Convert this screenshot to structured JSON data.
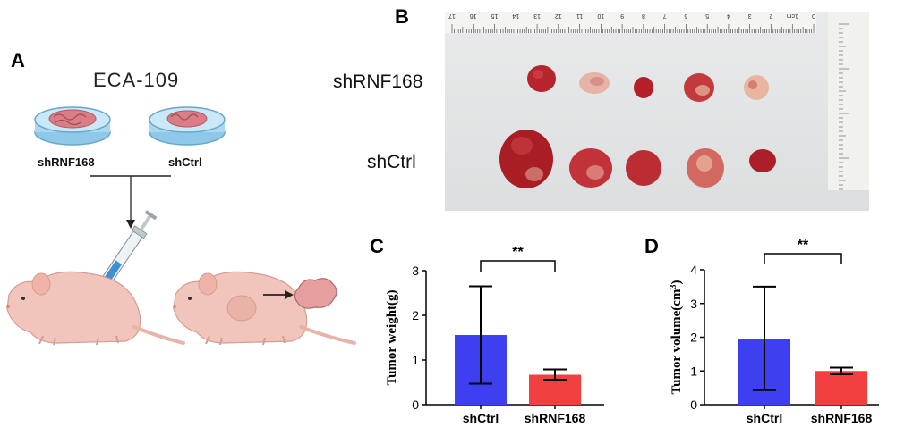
{
  "panels": {
    "a": "A",
    "b": "B",
    "c": "C",
    "d": "D"
  },
  "panel_a": {
    "cell_line": "ECA-109",
    "dish_left_label": "shRNF168",
    "dish_right_label": "shCtrl"
  },
  "panel_b": {
    "row_top_label": "shRNF168",
    "row_bottom_label": "shCtrl",
    "ruler_numbers": [
      "17",
      "16",
      "15",
      "14",
      "13",
      "12",
      "11",
      "10",
      "9",
      "8",
      "7",
      "6",
      "5",
      "4",
      "3",
      "2",
      "1cm",
      "0"
    ]
  },
  "colors": {
    "shCtrl": "#3f3ff2",
    "shRNF168": "#f23f3f"
  },
  "chart_data": [
    {
      "type": "bar",
      "title": "",
      "xlabel": "",
      "ylabel": "Tumor weight(g)",
      "categories": [
        "shCtrl",
        "shRNF168"
      ],
      "values": [
        1.56,
        0.67
      ],
      "error_upper": [
        2.65,
        0.79
      ],
      "error_lower": [
        0.47,
        0.56
      ],
      "ylim": [
        0,
        3
      ],
      "yticks": [
        "0",
        "1",
        "2",
        "3"
      ],
      "significance": "**"
    },
    {
      "type": "bar",
      "title": "",
      "xlabel": "",
      "ylabel": "Tumor volume(cm",
      "ylabel_sup": "3",
      "ylabel_close": ")",
      "categories": [
        "shCtrl",
        "shRNF168"
      ],
      "values": [
        1.95,
        1.0
      ],
      "error_upper": [
        3.5,
        1.1
      ],
      "error_lower": [
        0.43,
        0.9
      ],
      "ylim": [
        0,
        4
      ],
      "yticks": [
        "0",
        "1",
        "2",
        "3",
        "4"
      ],
      "significance": "**"
    }
  ]
}
